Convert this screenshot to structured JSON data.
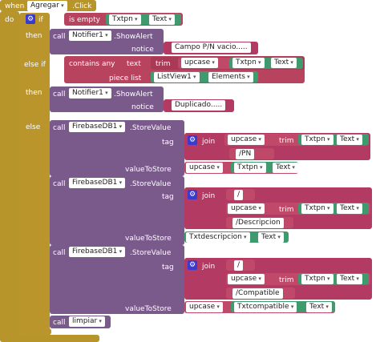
{
  "event": {
    "when": "when",
    "component": "Agregar",
    "event": ".Click",
    "do": "do"
  },
  "if": {
    "if": "if",
    "elseif": "else if",
    "then": "then",
    "else": "else"
  },
  "is_empty": {
    "label": "is empty",
    "comp": "Txtpn",
    "prop": "Text"
  },
  "call": "call",
  "alert1": {
    "comp": "Notifier1",
    "method": ".ShowAlert",
    "notice": "notice",
    "msg": "Campo P/N vacio....."
  },
  "contains": {
    "op": "contains any",
    "text": "text",
    "trim": "trim",
    "upcase": "upcase",
    "comp": "Txtpn",
    "prop": "Text",
    "piece": "piece list",
    "list": "ListView1",
    "elements": "Elements"
  },
  "alert2": {
    "comp": "Notifier1",
    "method": ".ShowAlert",
    "notice": "notice",
    "msg": "Duplicado....."
  },
  "store1": {
    "comp": "FirebaseDB1",
    "method": ".StoreValue",
    "tag": "tag",
    "join": "join",
    "upcase": "upcase",
    "trim": "trim",
    "c1": "Txtpn",
    "p1": "Text",
    "s1": "/PN",
    "vts": "valueToStore",
    "upcase2": "upcase",
    "c2": "Txtpn",
    "p2": "Text"
  },
  "store2": {
    "comp": "FirebaseDB1",
    "method": ".StoreValue",
    "tag": "tag",
    "join": "join",
    "slash": "/",
    "upcase": "upcase",
    "trim": "trim",
    "c1": "Txtpn",
    "p1": "Text",
    "s1": "/Descripcion",
    "vts": "valueToStore",
    "c2": "Txtdescripcion",
    "p2": "Text"
  },
  "store3": {
    "comp": "FirebaseDB1",
    "method": ".StoreValue",
    "tag": "tag",
    "join": "join",
    "slash": "/",
    "upcase": "upcase",
    "trim": "trim",
    "c1": "Txtpn",
    "p1": "Text",
    "s1": "/Compatible",
    "vts": "valueToStore",
    "upcase2": "upcase",
    "c2": "Txtcompatible",
    "p2": "Text"
  },
  "limpiar": {
    "comp": "limpiar"
  },
  "colors": {
    "event": "#b8952a",
    "procedure": "#7b5f8f",
    "text": "#b33a62",
    "component": "#3f9b6e"
  }
}
